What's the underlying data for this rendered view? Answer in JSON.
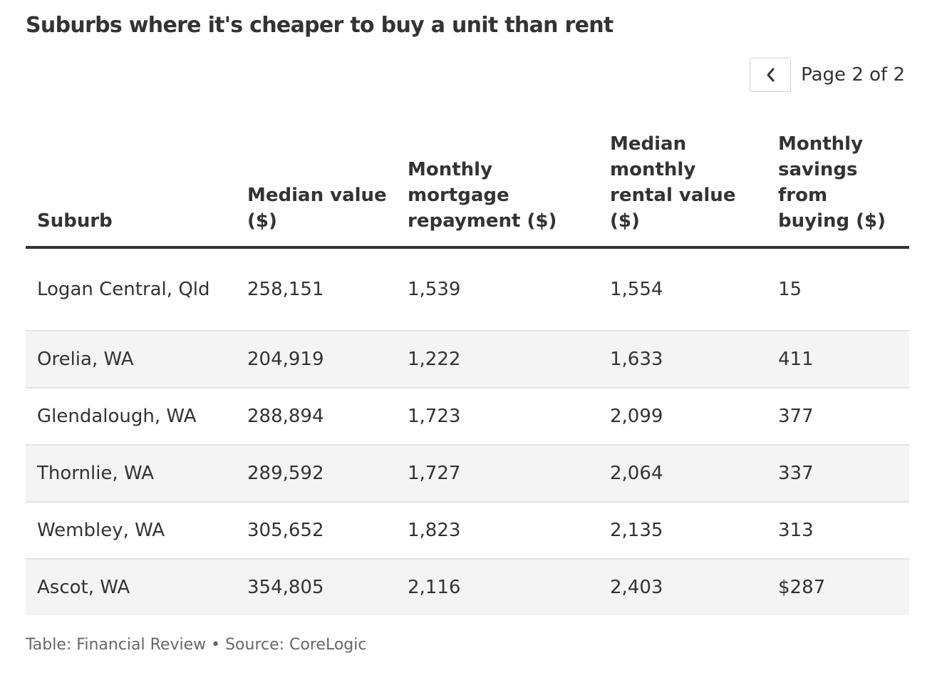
{
  "chart_data": {
    "type": "table",
    "title": "Suburbs where it's cheaper to buy a unit than rent",
    "pagination": {
      "prev_icon": "chevron-left-icon",
      "label": "Page 2 of 2",
      "current_page": 2,
      "total_pages": 2
    },
    "columns": [
      "Suburb",
      "Median value ($)",
      "Monthly mortgage repayment ($)",
      "Median monthly rental value ($)",
      "Monthly savings from buying ($)"
    ],
    "rows": [
      [
        "Logan Central, Qld",
        "258,151",
        "1,539",
        "1,554",
        "15"
      ],
      [
        "Orelia, WA",
        "204,919",
        "1,222",
        "1,633",
        "411"
      ],
      [
        "Glendalough, WA",
        "288,894",
        "1,723",
        "2,099",
        "377"
      ],
      [
        "Thornlie, WA",
        "289,592",
        "1,727",
        "2,064",
        "337"
      ],
      [
        "Wembley, WA",
        "305,652",
        "1,823",
        "2,135",
        "313"
      ],
      [
        "Ascot, WA",
        "354,805",
        "2,116",
        "2,403",
        "$287"
      ]
    ],
    "footer": "Table: Financial Review • Source: CoreLogic",
    "colors": {
      "text": "#333333",
      "header_rule": "#333333",
      "row_divider": "#e3e3e3",
      "alt_row_background": "#f4f4f4",
      "footer_text": "#666666"
    }
  }
}
